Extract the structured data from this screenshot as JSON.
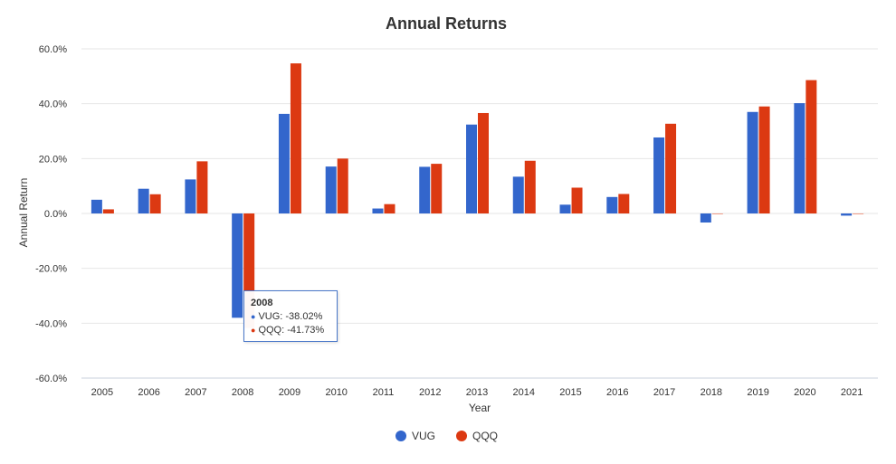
{
  "chart_data": {
    "type": "bar",
    "title": "Annual Returns",
    "xlabel": "Year",
    "ylabel": "Annual Return",
    "ylim": [
      -60,
      60
    ],
    "yticks": [
      "60.0%",
      "40.0%",
      "20.0%",
      "0.0%",
      "-20.0%",
      "-40.0%",
      "-60.0%"
    ],
    "ytick_values": [
      60,
      40,
      20,
      0,
      -20,
      -40,
      -60
    ],
    "grid": true,
    "legend_position": "bottom",
    "categories": [
      "2005",
      "2006",
      "2007",
      "2008",
      "2009",
      "2010",
      "2011",
      "2012",
      "2013",
      "2014",
      "2015",
      "2016",
      "2017",
      "2018",
      "2019",
      "2020",
      "2021"
    ],
    "series": [
      {
        "name": "VUG",
        "color": "#3366cc",
        "values": [
          5.0,
          9.0,
          12.4,
          -38.02,
          36.3,
          17.1,
          1.8,
          17.0,
          32.4,
          13.4,
          3.2,
          6.0,
          27.7,
          -3.3,
          37.0,
          40.2,
          -0.8
        ]
      },
      {
        "name": "QQQ",
        "color": "#dc3912",
        "values": [
          1.5,
          7.0,
          19.0,
          -41.73,
          54.7,
          20.0,
          3.4,
          18.1,
          36.6,
          19.2,
          9.4,
          7.1,
          32.7,
          -0.1,
          39.0,
          48.6,
          0.0
        ]
      }
    ],
    "tooltip": {
      "title": "2008",
      "rows": [
        {
          "color": "#3366cc",
          "text": "VUG: -38.02%"
        },
        {
          "color": "#dc3912",
          "text": "QQQ: -41.73%"
        }
      ]
    }
  }
}
